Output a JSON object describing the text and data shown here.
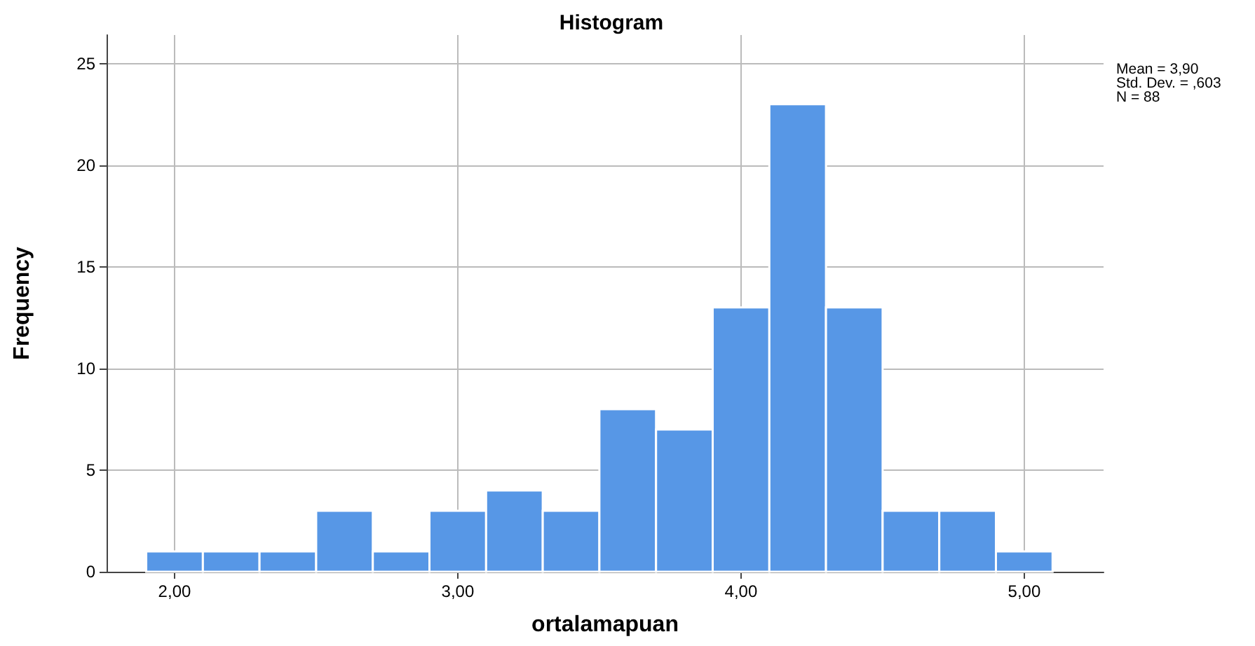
{
  "chart_data": {
    "type": "histogram",
    "title": "Histogram",
    "xlabel": "ortalamapuan",
    "ylabel": "Frequency",
    "bins": [
      1.9,
      2.1,
      2.3,
      2.5,
      2.7,
      2.9,
      3.1,
      3.3,
      3.5,
      3.7,
      3.9,
      4.1,
      4.3,
      4.5,
      4.7,
      4.9,
      5.1
    ],
    "values": [
      1,
      1,
      1,
      3,
      1,
      3,
      4,
      3,
      8,
      7,
      13,
      23,
      13,
      3,
      3,
      1
    ],
    "color": "#5797e6",
    "xlim": [
      1.76,
      5.28
    ],
    "xticks": [
      {
        "value": 2,
        "label": "2,00"
      },
      {
        "value": 3,
        "label": "3,00"
      },
      {
        "value": 4,
        "label": "4,00"
      },
      {
        "value": 5,
        "label": "5,00"
      }
    ],
    "ylim": [
      0,
      26.4
    ],
    "yticks": [
      0,
      5,
      10,
      15,
      20,
      25
    ],
    "grid": true,
    "annotations": [
      "Mean = 3,90",
      "Std. Dev. = ,603",
      "N = 88"
    ]
  }
}
